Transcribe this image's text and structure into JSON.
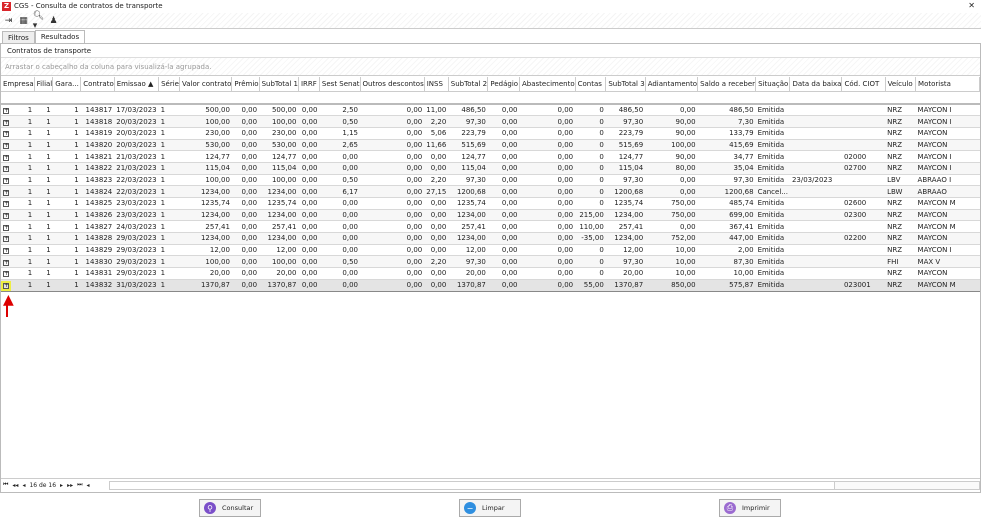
{
  "window": {
    "title": "CGS - Consulta de contratos de transporte",
    "close": "✕"
  },
  "toolbar": {
    "icons": [
      "exit-icon",
      "keyboard-icon",
      "search-dropdown-icon",
      "user-filter-icon"
    ]
  },
  "tabs": [
    {
      "label": "Filtros"
    },
    {
      "label": "Resultados",
      "active": true
    }
  ],
  "panel": {
    "title": "Contratos de transporte",
    "group_hint": "Arrastar o cabeçalho da coluna para visualizá-la agrupada."
  },
  "columns": [
    "Empresa",
    "Filial",
    "Gara...",
    "Contrato",
    "Emissao ▲",
    "Série",
    "Valor contrato",
    "Prêmio",
    "SubTotal 1",
    "IRRF",
    "Sest Senat",
    "Outros descontos",
    "INSS",
    "SubTotal 2",
    "Pedágio",
    "Abastecimento",
    "Contas",
    "SubTotal 3",
    "Adiantamento",
    "Saldo a receber",
    "Situação",
    "Data da baixa",
    "Cód. CIOT",
    "Veículo",
    "Motorista"
  ],
  "rows": [
    [
      "1",
      "1",
      "1",
      "143817",
      "17/03/2023",
      "1",
      "500,00",
      "0,00",
      "500,00",
      "0,00",
      "2,50",
      "0,00",
      "11,00",
      "486,50",
      "0,00",
      "0,00",
      "0",
      "486,50",
      "0,00",
      "486,50",
      "Emitida",
      "",
      "",
      "NRZ",
      "MAYCON I"
    ],
    [
      "1",
      "1",
      "1",
      "143818",
      "20/03/2023",
      "1",
      "100,00",
      "0,00",
      "100,00",
      "0,00",
      "0,50",
      "0,00",
      "2,20",
      "97,30",
      "0,00",
      "0,00",
      "0",
      "97,30",
      "90,00",
      "7,30",
      "Emitida",
      "",
      "",
      "NRZ",
      "MAYCON I"
    ],
    [
      "1",
      "1",
      "1",
      "143819",
      "20/03/2023",
      "1",
      "230,00",
      "0,00",
      "230,00",
      "0,00",
      "1,15",
      "0,00",
      "5,06",
      "223,79",
      "0,00",
      "0,00",
      "0",
      "223,79",
      "90,00",
      "133,79",
      "Emitida",
      "",
      "",
      "NRZ",
      "MAYCON"
    ],
    [
      "1",
      "1",
      "1",
      "143820",
      "20/03/2023",
      "1",
      "530,00",
      "0,00",
      "530,00",
      "0,00",
      "2,65",
      "0,00",
      "11,66",
      "515,69",
      "0,00",
      "0,00",
      "0",
      "515,69",
      "100,00",
      "415,69",
      "Emitida",
      "",
      "",
      "NRZ",
      "MAYCON"
    ],
    [
      "1",
      "1",
      "1",
      "143821",
      "21/03/2023",
      "1",
      "124,77",
      "0,00",
      "124,77",
      "0,00",
      "0,00",
      "0,00",
      "0,00",
      "124,77",
      "0,00",
      "0,00",
      "0",
      "124,77",
      "90,00",
      "34,77",
      "Emitida",
      "",
      "02000",
      "NRZ",
      "MAYCON I"
    ],
    [
      "1",
      "1",
      "1",
      "143822",
      "21/03/2023",
      "1",
      "115,04",
      "0,00",
      "115,04",
      "0,00",
      "0,00",
      "0,00",
      "0,00",
      "115,04",
      "0,00",
      "0,00",
      "0",
      "115,04",
      "80,00",
      "35,04",
      "Emitida",
      "",
      "02700",
      "NRZ",
      "MAYCON I"
    ],
    [
      "1",
      "1",
      "1",
      "143823",
      "22/03/2023",
      "1",
      "100,00",
      "0,00",
      "100,00",
      "0,00",
      "0,50",
      "0,00",
      "2,20",
      "97,30",
      "0,00",
      "0,00",
      "0",
      "97,30",
      "0,00",
      "97,30",
      "Emitida",
      "23/03/2023",
      "",
      "LBV",
      "ABRAAO I"
    ],
    [
      "1",
      "1",
      "1",
      "143824",
      "22/03/2023",
      "1",
      "1234,00",
      "0,00",
      "1234,00",
      "0,00",
      "6,17",
      "0,00",
      "27,15",
      "1200,68",
      "0,00",
      "0,00",
      "0",
      "1200,68",
      "0,00",
      "1200,68",
      "Cancel...",
      "",
      "",
      "LBW",
      "ABRAAO"
    ],
    [
      "1",
      "1",
      "1",
      "143825",
      "23/03/2023",
      "1",
      "1235,74",
      "0,00",
      "1235,74",
      "0,00",
      "0,00",
      "0,00",
      "0,00",
      "1235,74",
      "0,00",
      "0,00",
      "0",
      "1235,74",
      "750,00",
      "485,74",
      "Emitida",
      "",
      "02600",
      "NRZ",
      "MAYCON M"
    ],
    [
      "1",
      "1",
      "1",
      "143826",
      "23/03/2023",
      "1",
      "1234,00",
      "0,00",
      "1234,00",
      "0,00",
      "0,00",
      "0,00",
      "0,00",
      "1234,00",
      "0,00",
      "0,00",
      "215,00",
      "1234,00",
      "750,00",
      "699,00",
      "Emitida",
      "",
      "02300",
      "NRZ",
      "MAYCON"
    ],
    [
      "1",
      "1",
      "1",
      "143827",
      "24/03/2023",
      "1",
      "257,41",
      "0,00",
      "257,41",
      "0,00",
      "0,00",
      "0,00",
      "0,00",
      "257,41",
      "0,00",
      "0,00",
      "110,00",
      "257,41",
      "0,00",
      "367,41",
      "Emitida",
      "",
      "",
      "NRZ",
      "MAYCON M"
    ],
    [
      "1",
      "1",
      "1",
      "143828",
      "29/03/2023",
      "1",
      "1234,00",
      "0,00",
      "1234,00",
      "0,00",
      "0,00",
      "0,00",
      "0,00",
      "1234,00",
      "0,00",
      "0,00",
      "-35,00",
      "1234,00",
      "752,00",
      "447,00",
      "Emitida",
      "",
      "02200",
      "NRZ",
      "MAYCON"
    ],
    [
      "1",
      "1",
      "1",
      "143829",
      "29/03/2023",
      "1",
      "12,00",
      "0,00",
      "12,00",
      "0,00",
      "0,00",
      "0,00",
      "0,00",
      "12,00",
      "0,00",
      "0,00",
      "0",
      "12,00",
      "10,00",
      "2,00",
      "Emitida",
      "",
      "",
      "NRZ",
      "MAYCON I"
    ],
    [
      "1",
      "1",
      "1",
      "143830",
      "29/03/2023",
      "1",
      "100,00",
      "0,00",
      "100,00",
      "0,00",
      "0,50",
      "0,00",
      "2,20",
      "97,30",
      "0,00",
      "0,00",
      "0",
      "97,30",
      "10,00",
      "87,30",
      "Emitida",
      "",
      "",
      "FHI",
      "MAX V"
    ],
    [
      "1",
      "1",
      "1",
      "143831",
      "29/03/2023",
      "1",
      "20,00",
      "0,00",
      "20,00",
      "0,00",
      "0,00",
      "0,00",
      "0,00",
      "20,00",
      "0,00",
      "0,00",
      "0",
      "20,00",
      "10,00",
      "10,00",
      "Emitida",
      "",
      "",
      "NRZ",
      "MAYCON"
    ],
    [
      "1",
      "1",
      "1",
      "143832",
      "31/03/2023",
      "1",
      "1370,87",
      "0,00",
      "1370,87",
      "0,00",
      "0,00",
      "0,00",
      "0,00",
      "1370,87",
      "0,00",
      "0,00",
      "55,00",
      "1370,87",
      "850,00",
      "575,87",
      "Emitida",
      "",
      "023001",
      "NRZ",
      "MAYCON M"
    ]
  ],
  "selected_row": 15,
  "pager": {
    "first": "⏮",
    "prev_page": "◂◂",
    "prev": "◂",
    "position": "16 de 16",
    "next": "▸",
    "next_page": "▸▸",
    "last": "⏭",
    "extra": "◂"
  },
  "footer": {
    "consultar": "Consultar",
    "limpar": "Limpar",
    "imprimir": "Imprimir"
  },
  "colors": {
    "consultar": "#7b4fc9",
    "limpar": "#2f8fe0",
    "imprimir": "#9b6bd0",
    "highlight": "#eeee44",
    "arrow": "#dd0000"
  }
}
